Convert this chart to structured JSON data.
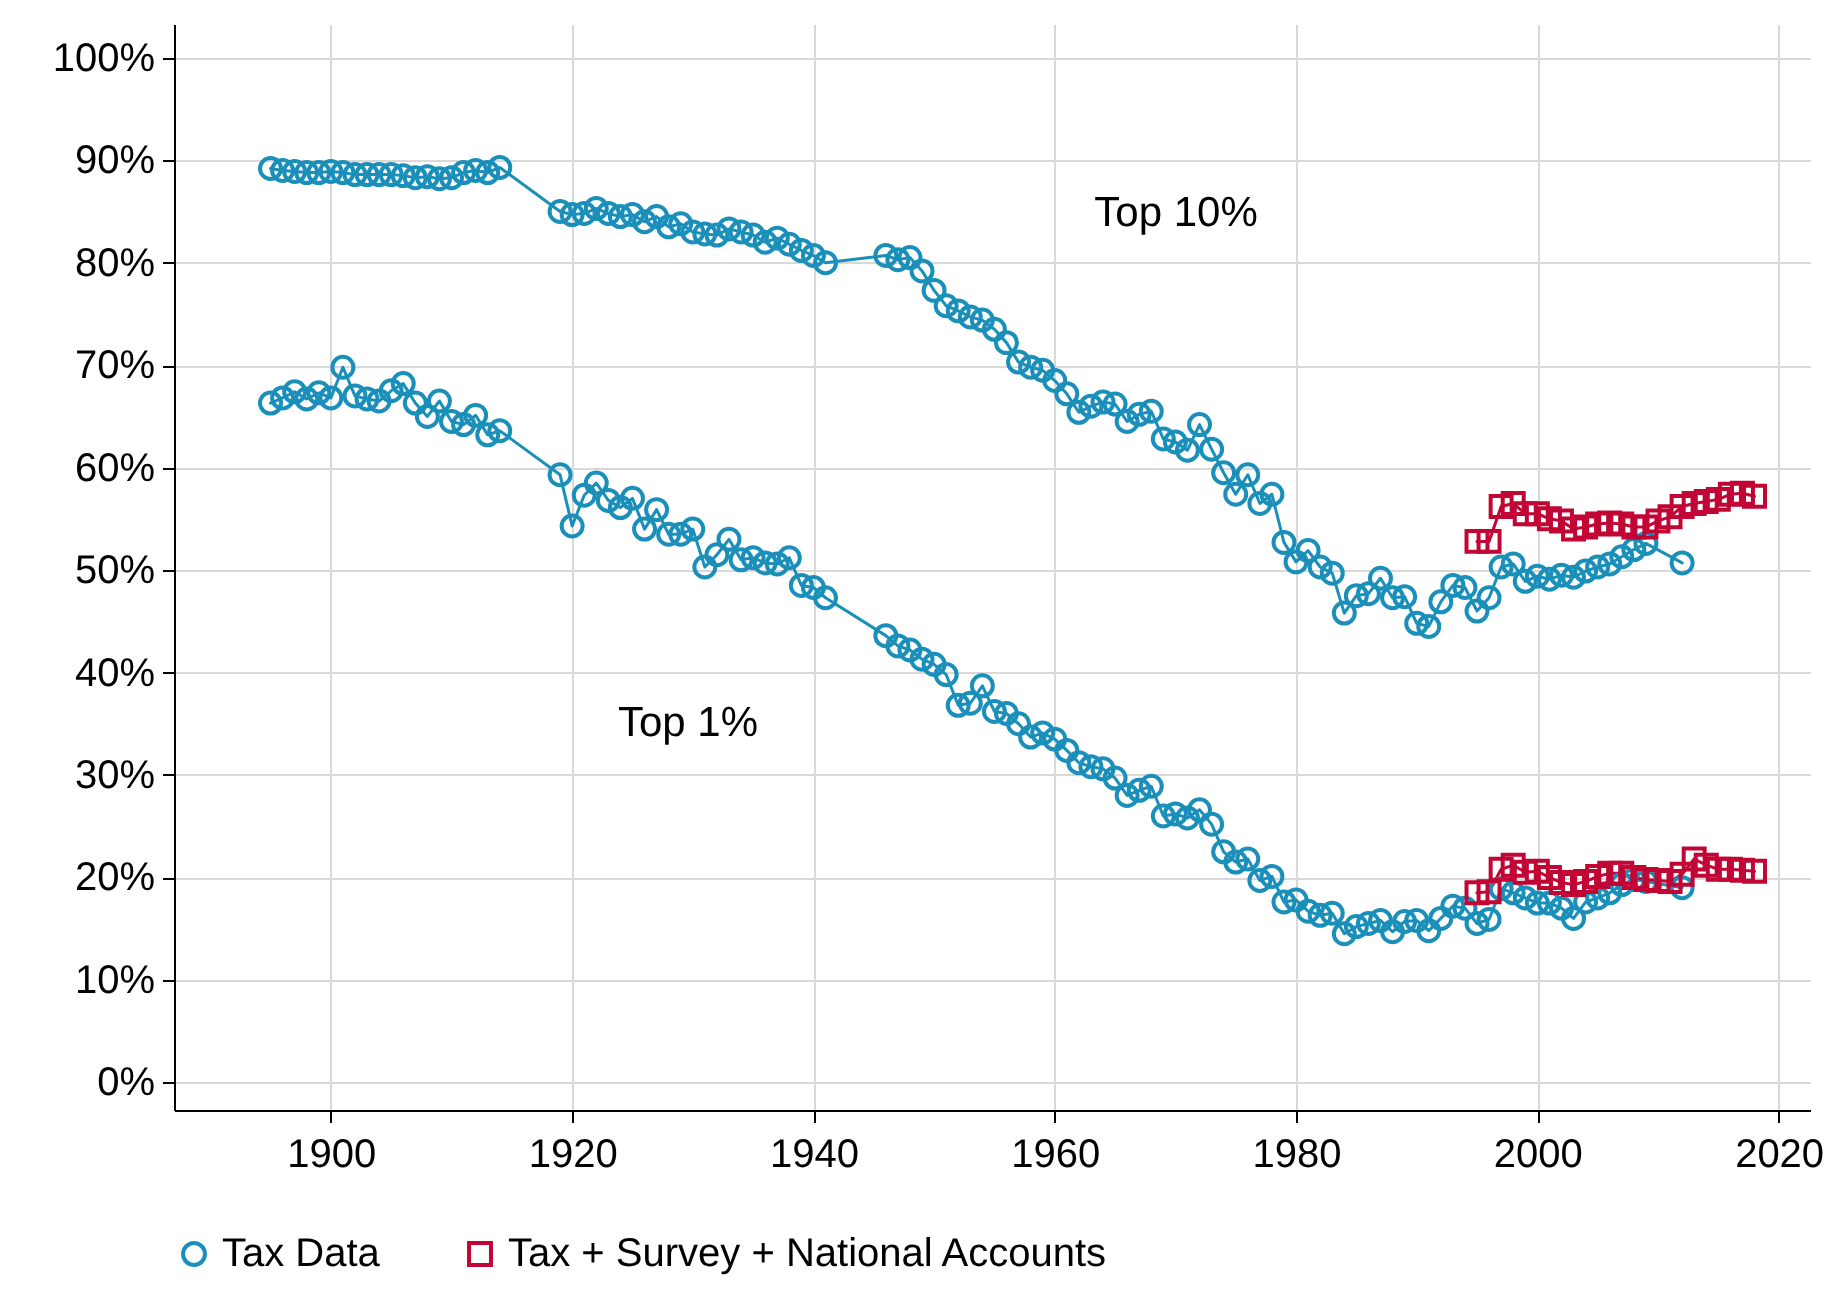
{
  "chart_data": {
    "type": "line",
    "series": [
      {
        "name": "Tax Data",
        "color": "#1a8fba",
        "marker": "circle",
        "x": [
          1895,
          1896,
          1897,
          1898,
          1899,
          1900,
          1901,
          1902,
          1903,
          1904,
          1905,
          1906,
          1907,
          1908,
          1909,
          1910,
          1911,
          1912,
          1913,
          1914,
          1919,
          1920,
          1921,
          1922,
          1923,
          1924,
          1925,
          1926,
          1927,
          1928,
          1929,
          1930,
          1931,
          1932,
          1933,
          1934,
          1935,
          1936,
          1937,
          1938,
          1939,
          1940,
          1941,
          1946,
          1947,
          1948,
          1949,
          1950,
          1951,
          1952,
          1953,
          1954,
          1955,
          1956,
          1957,
          1958,
          1959,
          1960,
          1961,
          1962,
          1963,
          1964,
          1965,
          1966,
          1967,
          1968,
          1969,
          1970,
          1971,
          1972,
          1973,
          1974,
          1975,
          1976,
          1977,
          1978,
          1979,
          1980,
          1981,
          1982,
          1983,
          1984,
          1985,
          1986,
          1987,
          1988,
          1989,
          1990,
          1991,
          1992,
          1993,
          1994,
          1995,
          1996,
          1997,
          1998,
          1999,
          2000,
          2001,
          2002,
          2003,
          2004,
          2005,
          2006,
          2007,
          2008,
          2009,
          2012
        ],
        "values": [
          89.2,
          89,
          88.9,
          88.8,
          88.8,
          88.9,
          88.8,
          88.6,
          88.6,
          88.6,
          88.6,
          88.5,
          88.3,
          88.4,
          88.2,
          88.3,
          88.8,
          89,
          88.8,
          89.3,
          85,
          84.7,
          84.8,
          85.3,
          84.8,
          84.5,
          84.7,
          84,
          84.5,
          83.5,
          83.8,
          83,
          82.8,
          82.7,
          83.3,
          83,
          82.7,
          82,
          82.4,
          81.8,
          81.2,
          80.7,
          80,
          80.7,
          80.3,
          80.5,
          79.2,
          77.3,
          75.8,
          75.3,
          74.7,
          74.4,
          73.5,
          72.2,
          70.3,
          69.8,
          69.5,
          68.5,
          67.2,
          65.4,
          66,
          66.4,
          66.2,
          64.5,
          65.2,
          65.5,
          62.8,
          62.5,
          61.7,
          64.2,
          61.8,
          59.5,
          57.4,
          59.3,
          56.5,
          57.4,
          52.7,
          50.8,
          51.9,
          50.3,
          49.7,
          45.8,
          47.5,
          47.7,
          49.2,
          47.3,
          47.4,
          44.8,
          44.5,
          46.9,
          48.5,
          48.3,
          46,
          47.3,
          50.3,
          50.6,
          48.9,
          49.4,
          49.1,
          49.5,
          49.3,
          49.9,
          50.3,
          50.6,
          51.3,
          52,
          52.6,
          50.7
        ]
      },
      {
        "name": "Tax + Survey + National Accounts",
        "color": "#c10534",
        "marker": "square",
        "x": [
          1995,
          1996,
          1997,
          1998,
          1999,
          2000,
          2001,
          2002,
          2003,
          2004,
          2005,
          2006,
          2007,
          2008,
          2009,
          2010,
          2011,
          2012,
          2013,
          2014,
          2015,
          2016,
          2017,
          2018
        ],
        "values": [
          52.8,
          52.8,
          56.2,
          56.5,
          55.5,
          55.5,
          55,
          54.8,
          54,
          54.2,
          54.5,
          54.6,
          54.5,
          54.2,
          54.2,
          54.8,
          55.2,
          56.2,
          56.5,
          56.7,
          56.9,
          57.4,
          57.5,
          57.2
        ]
      },
      {
        "color": "#1a8fba",
        "marker": "circle",
        "x": [
          1895,
          1896,
          1897,
          1898,
          1899,
          1900,
          1901,
          1902,
          1903,
          1904,
          1905,
          1906,
          1907,
          1908,
          1909,
          1910,
          1911,
          1912,
          1913,
          1914,
          1919,
          1920,
          1921,
          1922,
          1923,
          1924,
          1925,
          1926,
          1927,
          1928,
          1929,
          1930,
          1931,
          1932,
          1933,
          1934,
          1935,
          1936,
          1937,
          1938,
          1939,
          1940,
          1941,
          1946,
          1947,
          1948,
          1949,
          1950,
          1951,
          1952,
          1953,
          1954,
          1955,
          1956,
          1957,
          1958,
          1959,
          1960,
          1961,
          1962,
          1963,
          1964,
          1965,
          1966,
          1967,
          1968,
          1969,
          1970,
          1971,
          1972,
          1973,
          1974,
          1975,
          1976,
          1977,
          1978,
          1979,
          1980,
          1981,
          1982,
          1983,
          1984,
          1985,
          1986,
          1987,
          1988,
          1989,
          1990,
          1991,
          1992,
          1993,
          1994,
          1995,
          1996,
          1997,
          1998,
          1999,
          2000,
          2001,
          2002,
          2003,
          2004,
          2005,
          2006,
          2007,
          2008,
          2009,
          2012
        ],
        "values": [
          66.3,
          66.8,
          67.4,
          66.7,
          67.3,
          66.8,
          69.8,
          67,
          66.7,
          66.5,
          67.5,
          68.2,
          66.3,
          65,
          66.5,
          64.5,
          64.2,
          65.1,
          63.2,
          63.6,
          59.3,
          54.3,
          57.3,
          58.5,
          56.8,
          56.1,
          57,
          54,
          55.9,
          53.5,
          53.5,
          54,
          50.3,
          51.5,
          53,
          51,
          51.2,
          50.7,
          50.6,
          51.2,
          48.5,
          48.3,
          47.3,
          43.6,
          42.6,
          42.2,
          41.3,
          40.8,
          39.8,
          36.8,
          37,
          38.7,
          36.2,
          36,
          35,
          33.7,
          34.1,
          33.5,
          32.4,
          31.2,
          30.8,
          30.6,
          29.7,
          28,
          28.5,
          28.9,
          26,
          26.2,
          25.8,
          26.6,
          25.2,
          22.5,
          21.5,
          21.8,
          19.7,
          20.1,
          17.6,
          17.8,
          16.7,
          16.3,
          16.5,
          14.5,
          15.2,
          15.5,
          15.8,
          14.7,
          15.7,
          15.8,
          14.8,
          16,
          17.2,
          17,
          15.5,
          15.9,
          18.9,
          18.5,
          18,
          17.5,
          17.5,
          17,
          16,
          17.6,
          18,
          18.5,
          19.3,
          19.8,
          19.6,
          19
        ]
      },
      {
        "color": "#c10534",
        "marker": "square",
        "x": [
          1995,
          1996,
          1997,
          1998,
          1999,
          2000,
          2001,
          2002,
          2003,
          2004,
          2005,
          2006,
          2007,
          2008,
          2009,
          2010,
          2011,
          2012,
          2013,
          2014,
          2015,
          2016,
          2017,
          2018
        ],
        "values": [
          18.5,
          18.6,
          20.8,
          21.2,
          20.5,
          20.6,
          20,
          19.5,
          19.3,
          19.6,
          20.1,
          20.4,
          20.4,
          20,
          19.8,
          19.7,
          19.6,
          20.3,
          21.8,
          21.2,
          20.8,
          20.8,
          20.7,
          20.6
        ]
      }
    ],
    "annotations": [
      "Top 10%",
      "Top 1%"
    ],
    "xlim": [
      1887,
      2022.6
    ],
    "xticks": [
      1900,
      1920,
      1940,
      1960,
      1980,
      2000,
      2020
    ],
    "ylim": [
      -2.7,
      103.3
    ],
    "yticks": [
      {
        "value": 0,
        "label": "0%"
      },
      {
        "value": 10,
        "label": "10%"
      },
      {
        "value": 20,
        "label": "20%"
      },
      {
        "value": 30,
        "label": "30%"
      },
      {
        "value": 40,
        "label": "40%"
      },
      {
        "value": 50,
        "label": "50%"
      },
      {
        "value": 60,
        "label": "60%"
      },
      {
        "value": 70,
        "label": "70%"
      },
      {
        "value": 80,
        "label": "80%"
      },
      {
        "value": 90,
        "label": "90%"
      },
      {
        "value": 100,
        "label": "100%"
      }
    ],
    "grid": true,
    "legend": "bottom",
    "line_style": "solid"
  }
}
